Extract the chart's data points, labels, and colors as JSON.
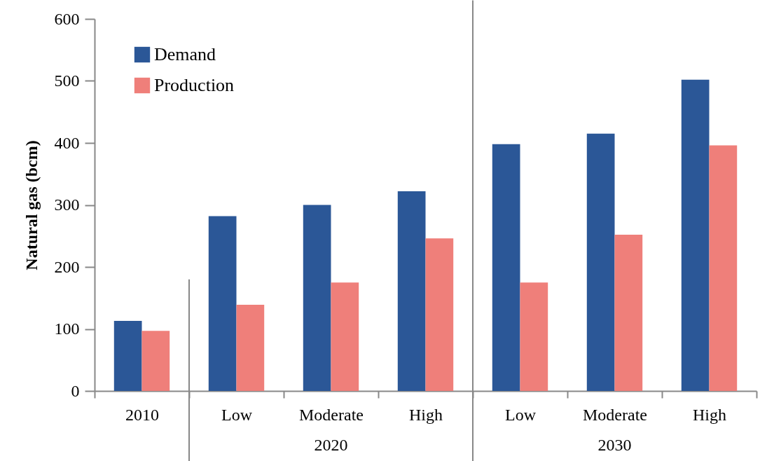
{
  "chart_data": {
    "type": "bar",
    "ylabel": "Natural gas (bcm)",
    "categories": [
      "2010",
      "Low",
      "Moderate",
      "High",
      "Low",
      "Moderate",
      "High"
    ],
    "series": [
      {
        "name": "Demand",
        "color": "#2b5797",
        "values": [
          113,
          282,
          300,
          322,
          398,
          415,
          502
        ]
      },
      {
        "name": "Production",
        "color": "#ef7f7a",
        "values": [
          97,
          139,
          175,
          246,
          175,
          252,
          396
        ]
      }
    ],
    "annotations": [
      "2020",
      "2030"
    ],
    "ylim": [
      0,
      600
    ],
    "yticks": [
      0,
      100,
      200,
      300,
      400,
      500,
      600
    ],
    "grid": false,
    "legend": "top left"
  }
}
